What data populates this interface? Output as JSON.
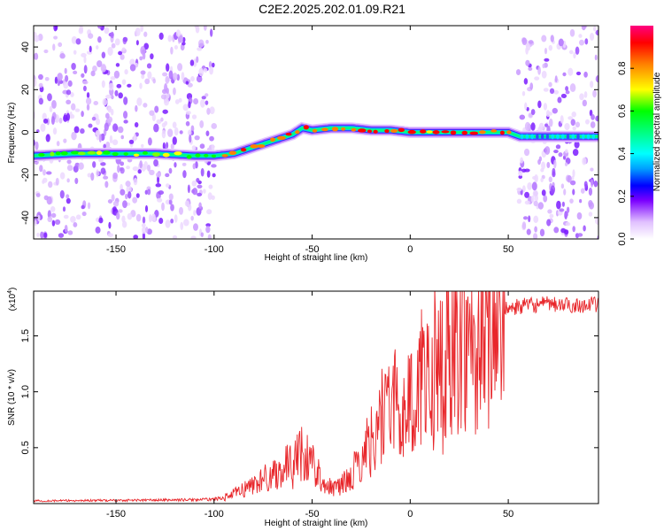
{
  "title": "C2E2.2025.202.01.09.R21",
  "chart_data": [
    {
      "type": "heatmap",
      "xlabel": "Height of straight line (km)",
      "ylabel": "Frequency (Hz)",
      "xlim": [
        -192,
        96
      ],
      "ylim": [
        -50,
        50
      ],
      "xticks": [
        "-150",
        "-100",
        "-50",
        "0",
        "50"
      ],
      "xtick_values": [
        -150,
        -100,
        -50,
        0,
        50
      ],
      "yticks": [
        "40",
        "20",
        "0",
        "-20",
        "-40"
      ],
      "ytick_values": [
        40,
        20,
        0,
        -20,
        -40
      ],
      "colorbar": {
        "label": "Normalized spectral amplitude",
        "ticks": [
          "0.0",
          "0.2",
          "0.4",
          "0.6",
          "0.8"
        ],
        "tick_values": [
          0.0,
          0.2,
          0.4,
          0.6,
          0.8
        ],
        "range": [
          0,
          1
        ]
      },
      "ridge": {
        "x": [
          -192,
          -170,
          -150,
          -130,
          -110,
          -100,
          -90,
          -80,
          -70,
          -60,
          -55,
          -50,
          -40,
          -30,
          -20,
          -10,
          0,
          10,
          20,
          30,
          40,
          50,
          56,
          70,
          96
        ],
        "freq": [
          -11,
          -10,
          -10,
          -10,
          -11,
          -11,
          -10,
          -7,
          -4,
          -1,
          2,
          1,
          2,
          2,
          1,
          1,
          0,
          0,
          0,
          0,
          0,
          0,
          -2,
          -2,
          -2
        ]
      },
      "noise_regions_x": [
        [
          -192,
          -100
        ],
        [
          55,
          96
        ]
      ]
    },
    {
      "type": "line",
      "xlabel": "Height of straight line (km)",
      "ylabel": "SNR (10 * v/v)",
      "y_multiplier": "(x10",
      "y_multiplier_exp": "4",
      "xlim": [
        -192,
        96
      ],
      "ylim": [
        0,
        19000
      ],
      "xticks": [
        "-150",
        "-100",
        "-50",
        "0",
        "50"
      ],
      "xtick_values": [
        -150,
        -100,
        -50,
        0,
        50
      ],
      "yticks": [
        "0.5",
        "1.0",
        "1.5"
      ],
      "ytick_values": [
        5000,
        10000,
        15000
      ],
      "color": "#e8272b",
      "envelope": {
        "x": [
          -192,
          -110,
          -100,
          -95,
          -90,
          -80,
          -70,
          -60,
          -55,
          -50,
          -45,
          -40,
          -35,
          -30,
          -25,
          -20,
          -15,
          -10,
          -5,
          0,
          5,
          10,
          15,
          20,
          25,
          30,
          35,
          40,
          45,
          50,
          55,
          60,
          70,
          80,
          96
        ],
        "snr": [
          250,
          350,
          400,
          550,
          900,
          1800,
          2800,
          3800,
          5200,
          3800,
          2400,
          1400,
          1700,
          2600,
          4300,
          6000,
          8200,
          10000,
          8500,
          9800,
          11500,
          12700,
          13600,
          14600,
          15400,
          16000,
          16500,
          16800,
          17200,
          17500,
          17700,
          17800,
          17900,
          17800,
          17900
        ]
      }
    }
  ]
}
